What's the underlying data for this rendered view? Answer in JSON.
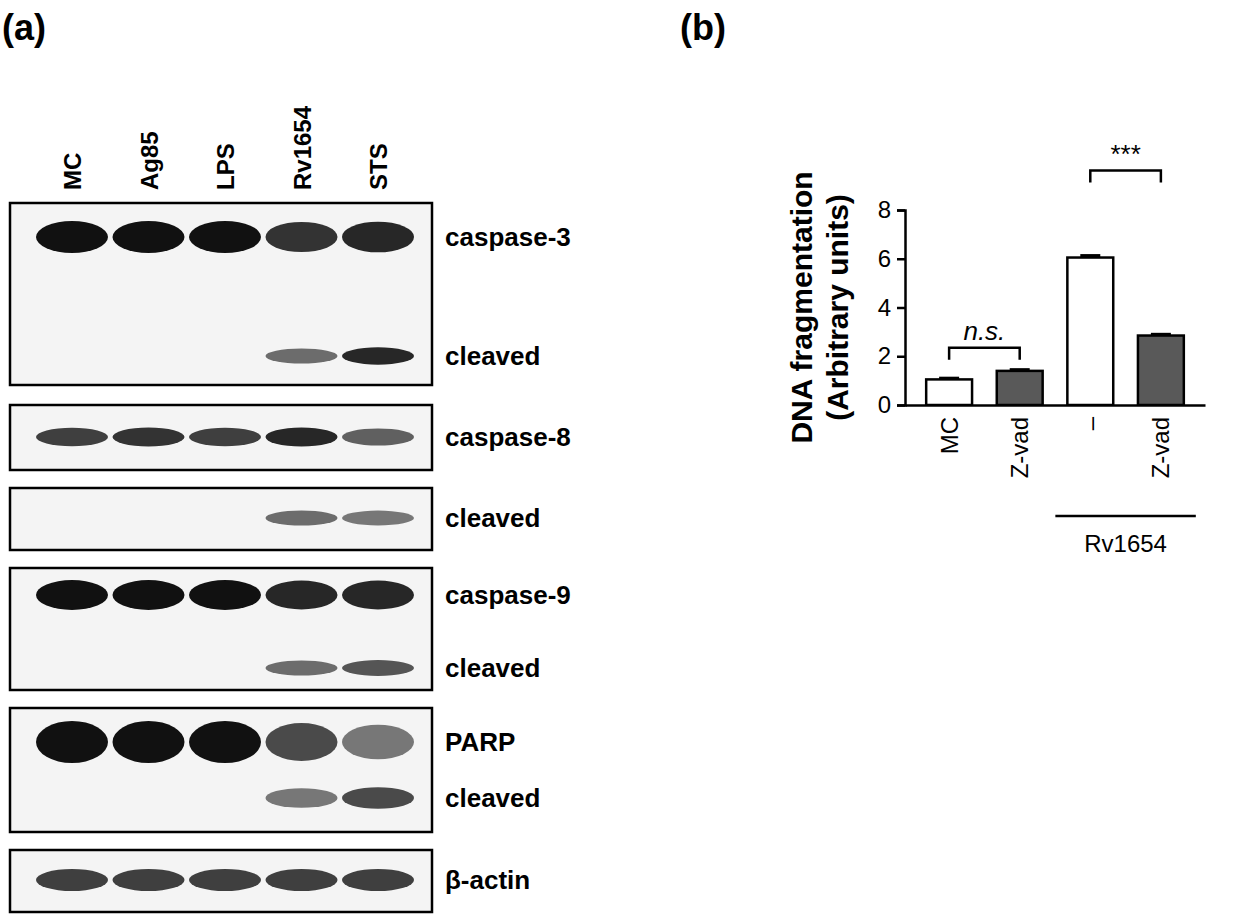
{
  "panel_labels": [
    "(a)",
    "(b)"
  ],
  "blot": {
    "lanes": [
      "MC",
      "Ag85",
      "LPS",
      "Rv1654",
      "STS"
    ],
    "panels": [
      {
        "bands": [
          {
            "label": "caspase-3",
            "intensity": [
              1,
              1,
              1,
              0.85,
              0.9
            ]
          },
          {
            "label": "cleaved",
            "intensity": [
              0,
              0,
              0,
              0.6,
              0.9
            ]
          }
        ]
      },
      {
        "bands": [
          {
            "label": "caspase-8",
            "intensity": [
              0.8,
              0.85,
              0.8,
              0.9,
              0.65
            ]
          }
        ]
      },
      {
        "bands": [
          {
            "label": "cleaved",
            "intensity": [
              0,
              0,
              0,
              0.6,
              0.55
            ]
          }
        ]
      },
      {
        "bands": [
          {
            "label": "caspase-9",
            "intensity": [
              1,
              1,
              1,
              0.9,
              0.9
            ]
          },
          {
            "label": "cleaved",
            "intensity": [
              0,
              0,
              0,
              0.6,
              0.7
            ]
          }
        ]
      },
      {
        "bands": [
          {
            "label": "PARP",
            "intensity": [
              1,
              1,
              1,
              0.75,
              0.55
            ]
          },
          {
            "label": "cleaved",
            "intensity": [
              0,
              0,
              0,
              0.55,
              0.75
            ]
          }
        ]
      },
      {
        "bands": [
          {
            "label": "β-actin",
            "intensity": [
              0.8,
              0.8,
              0.8,
              0.8,
              0.8
            ]
          }
        ]
      }
    ]
  },
  "chart_data": {
    "type": "bar",
    "ylabel": [
      "DNA fragmentation",
      "(Arbitrary units)"
    ],
    "categories": [
      "MC",
      "Z-vad",
      "–",
      "Z-vad"
    ],
    "values": [
      1.05,
      1.4,
      6.05,
      2.85
    ],
    "errors": [
      0.05,
      0.05,
      0.08,
      0.05
    ],
    "colors": [
      "#ffffff",
      "#595959",
      "#ffffff",
      "#595959"
    ],
    "ylim": [
      0,
      8
    ],
    "yticks": [
      0,
      2,
      4,
      6,
      8
    ],
    "groups": [
      {
        "label": "Rv1654",
        "start": 2,
        "end": 3
      }
    ],
    "annotations": [
      {
        "text": "n.s.",
        "from": 0,
        "to": 1
      },
      {
        "text": "***",
        "from": 2,
        "to": 3
      }
    ]
  }
}
